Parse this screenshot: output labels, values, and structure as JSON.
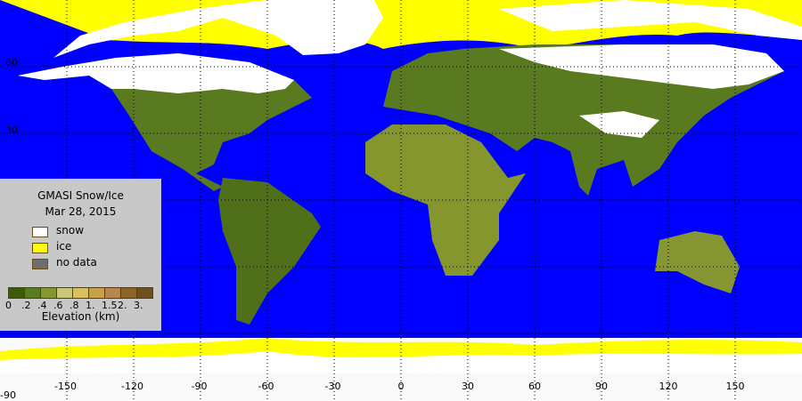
{
  "legend": {
    "title": "GMASI Snow/Ice",
    "date": "Mar 28, 2015",
    "items": [
      {
        "label": "snow",
        "color": "#ffffff"
      },
      {
        "label": "ice",
        "color": "#ffff00"
      },
      {
        "label": "no data",
        "color": "#6e6e6e"
      }
    ],
    "colorbar": {
      "colors": [
        "#3c5a0a",
        "#5a7a20",
        "#869632",
        "#c8c878",
        "#d8c060",
        "#c8a048",
        "#b8864a",
        "#8c6428",
        "#6e5020"
      ],
      "ticks": [
        "0",
        ".2",
        ".4",
        ".6",
        ".8",
        "1.",
        "1.5",
        "2.",
        "3."
      ],
      "label": "Elevation (km)"
    }
  },
  "axes": {
    "lon_ticks": [
      "-150",
      "-120",
      "-90",
      "-60",
      "-30",
      "0",
      "30",
      "60",
      "90",
      "120",
      "150"
    ],
    "lat_ticks": [
      "60",
      "30",
      "-90"
    ]
  },
  "colors": {
    "ocean": "#0000ff",
    "land": "#5a7a20",
    "snow": "#ffffff",
    "ice": "#ffff00"
  }
}
